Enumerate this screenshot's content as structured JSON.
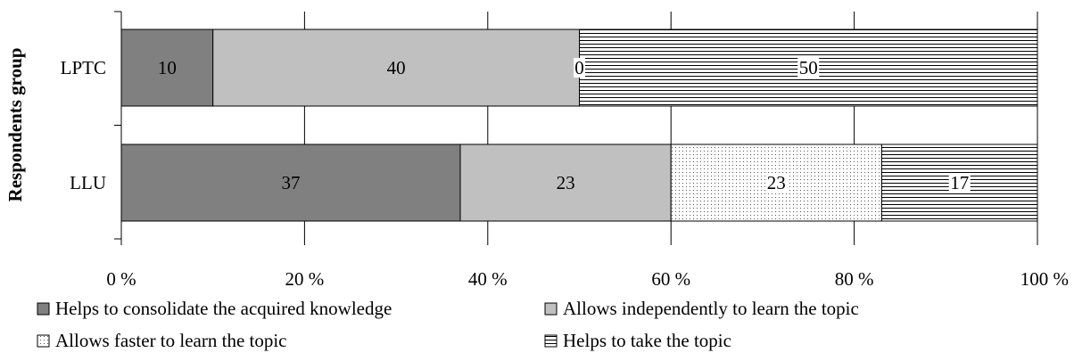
{
  "chart_data": {
    "type": "bar",
    "orientation": "horizontal",
    "stacked": true,
    "ylabel": "Respondents group",
    "xlabel": "",
    "xlim": [
      0,
      100
    ],
    "x_ticks": [
      {
        "value": 0,
        "label": "0 %"
      },
      {
        "value": 20,
        "label": "20 %"
      },
      {
        "value": 40,
        "label": "40 %"
      },
      {
        "value": 60,
        "label": "60 %"
      },
      {
        "value": 80,
        "label": "80 %"
      },
      {
        "value": 100,
        "label": "100 %"
      }
    ],
    "categories": [
      "LPTC",
      "LLU"
    ],
    "series": [
      {
        "name": "Helps to consolidate the acquired knowledge",
        "values": [
          10,
          37
        ],
        "labels": [
          "10",
          "37"
        ],
        "pattern": "solid",
        "color": "#808080"
      },
      {
        "name": "Allows independently to learn the topic",
        "values": [
          40,
          23
        ],
        "labels": [
          "40",
          "23"
        ],
        "pattern": "solid",
        "color": "#c0c0c0"
      },
      {
        "name": "Allows faster to learn the topic",
        "values": [
          0,
          23
        ],
        "labels": [
          "0",
          "23"
        ],
        "pattern": "dots",
        "color": "#ffffff"
      },
      {
        "name": "Helps to take the topic",
        "values": [
          50,
          17
        ],
        "labels": [
          "50",
          "17"
        ],
        "pattern": "hlines",
        "color": "#ffffff"
      }
    ],
    "legend_position": "bottom",
    "grid": "vertical"
  }
}
